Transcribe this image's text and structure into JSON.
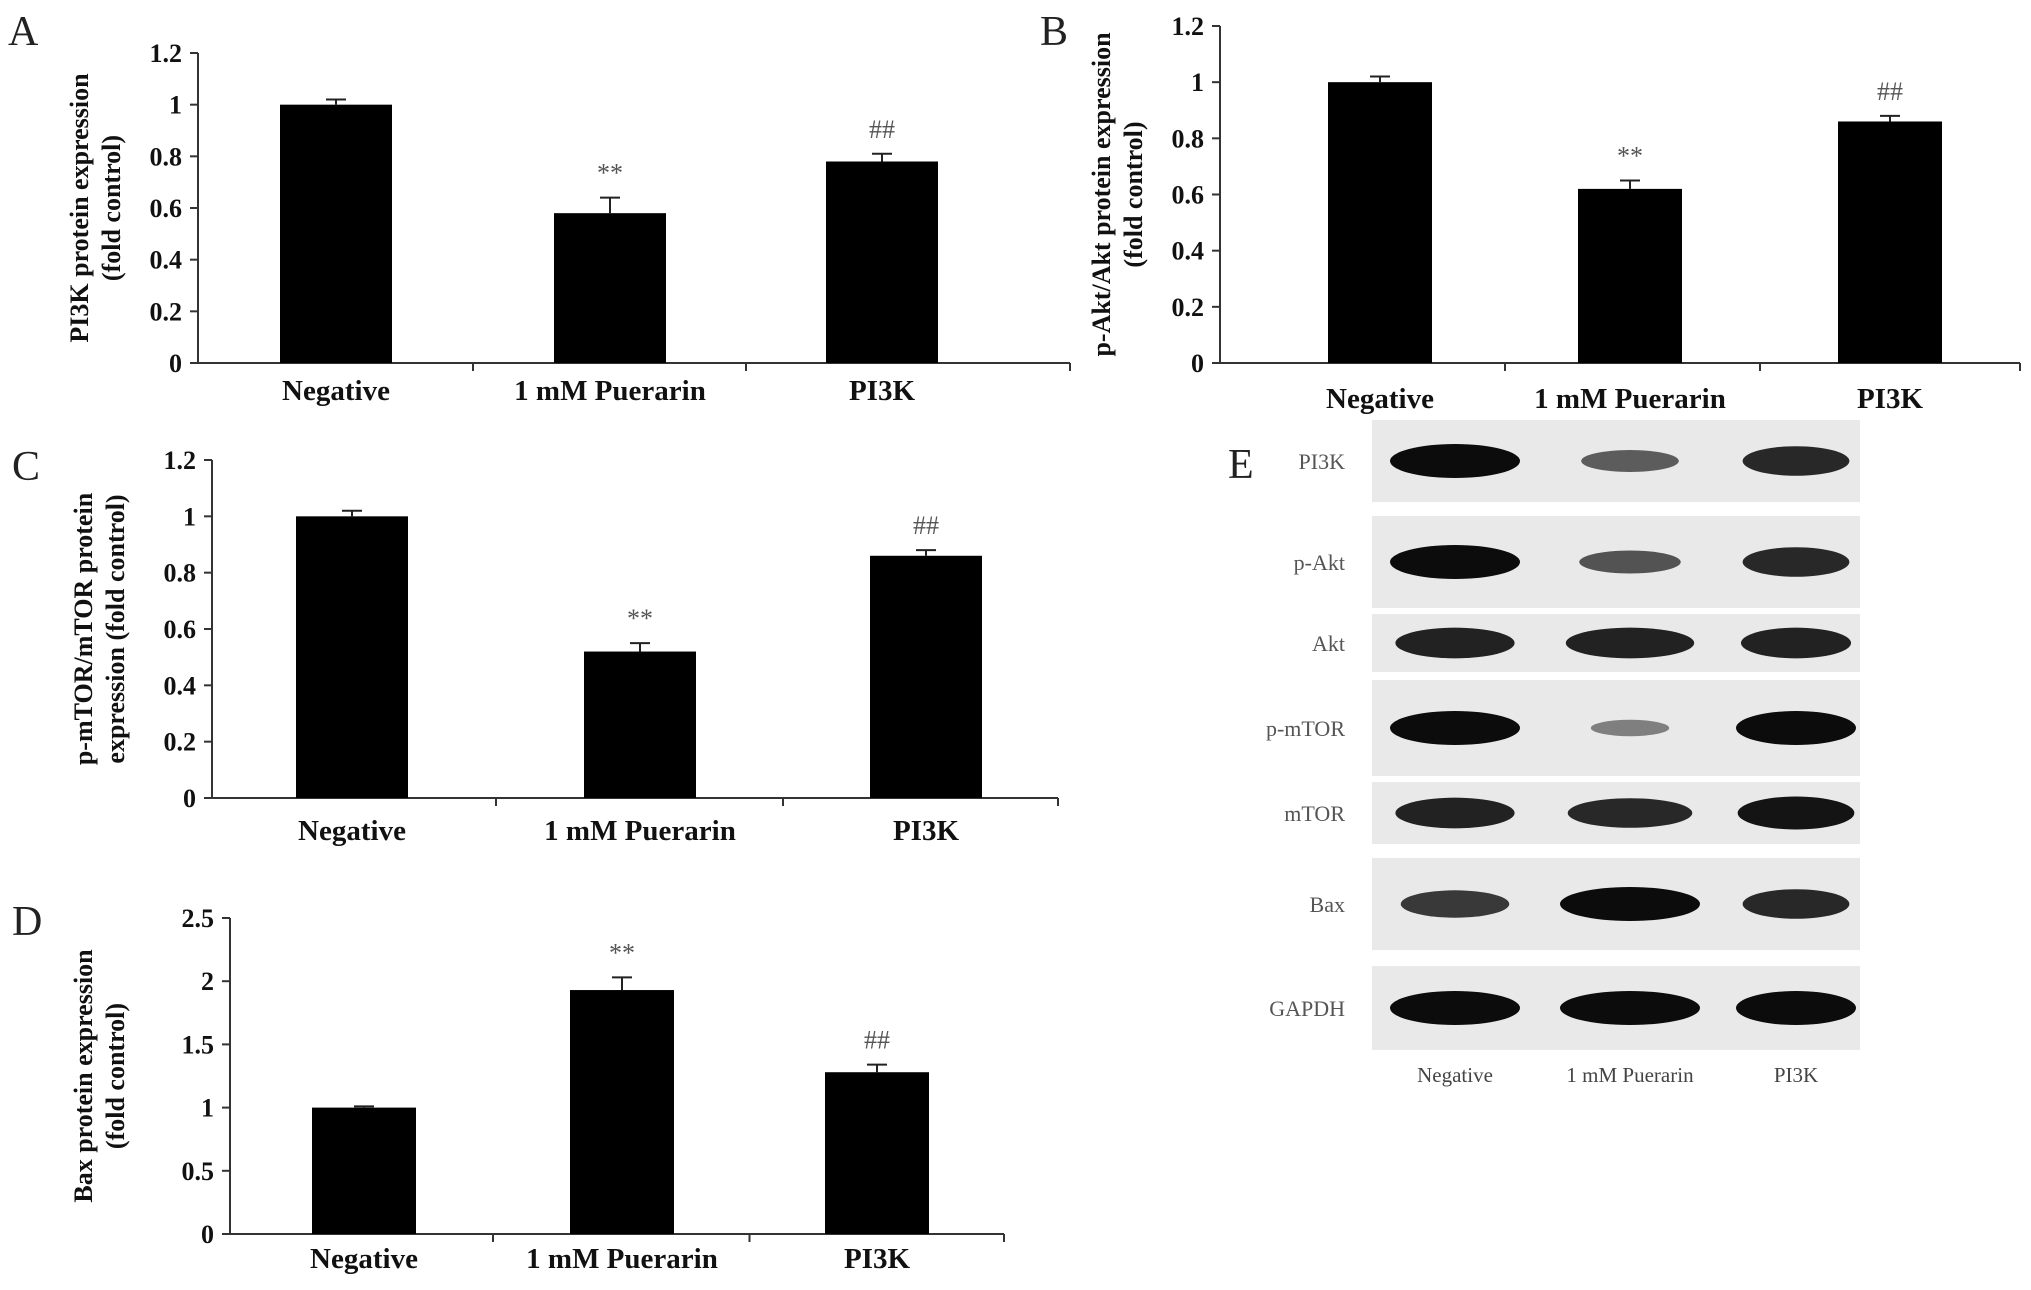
{
  "chart_data": [
    {
      "panel": "A",
      "type": "bar",
      "categories": [
        "Negative",
        "1 mM Puerarin",
        "PI3K"
      ],
      "values": [
        1.0,
        0.58,
        0.78
      ],
      "errors": [
        0.02,
        0.06,
        0.03
      ],
      "annotations": [
        "",
        "**",
        "##"
      ],
      "ylabel_lines": [
        "PI3K protein expression",
        "(fold control)"
      ],
      "ylim": [
        0,
        1.2
      ],
      "yticks": [
        "0",
        "0.2",
        "0.4",
        "0.6",
        "0.8",
        "1",
        "1.2"
      ]
    },
    {
      "panel": "B",
      "type": "bar",
      "categories": [
        "Negative",
        "1 mM Puerarin",
        "PI3K"
      ],
      "values": [
        1.0,
        0.62,
        0.86
      ],
      "errors": [
        0.02,
        0.03,
        0.02
      ],
      "annotations": [
        "",
        "**",
        "##"
      ],
      "ylabel_lines": [
        "p-Akt/Akt protein expression",
        "(fold control)"
      ],
      "ylim": [
        0,
        1.2
      ],
      "yticks": [
        "0",
        "0.2",
        "0.4",
        "0.6",
        "0.8",
        "1",
        "1.2"
      ]
    },
    {
      "panel": "C",
      "type": "bar",
      "categories": [
        "Negative",
        "1 mM Puerarin",
        "PI3K"
      ],
      "values": [
        1.0,
        0.52,
        0.86
      ],
      "errors": [
        0.02,
        0.03,
        0.02
      ],
      "annotations": [
        "",
        "**",
        "##"
      ],
      "ylabel_lines": [
        "p-mTOR/mTOR protein",
        "expression (fold control)"
      ],
      "ylim": [
        0,
        1.2
      ],
      "yticks": [
        "0",
        "0.2",
        "0.4",
        "0.6",
        "0.8",
        "1",
        "1.2"
      ]
    },
    {
      "panel": "D",
      "type": "bar",
      "categories": [
        "Negative",
        "1 mM Puerarin",
        "PI3K"
      ],
      "values": [
        1.0,
        1.93,
        1.28
      ],
      "errors": [
        0.01,
        0.1,
        0.06
      ],
      "annotations": [
        "",
        "**",
        "##"
      ],
      "ylabel_lines": [
        "Bax protein expression",
        "(fold control)"
      ],
      "ylim": [
        0,
        2.5
      ],
      "yticks": [
        "0",
        "0.5",
        "1",
        "1.5",
        "2",
        "2.5"
      ]
    }
  ],
  "blot": {
    "panel": "E",
    "rows": [
      {
        "label": "PI3K",
        "intensities": [
          1.0,
          0.45,
          0.8
        ]
      },
      {
        "label": "p-Akt",
        "intensities": [
          1.0,
          0.5,
          0.8
        ]
      },
      {
        "label": "Akt",
        "intensities": [
          0.85,
          0.85,
          0.85
        ]
      },
      {
        "label": "p-mTOR",
        "intensities": [
          1.0,
          0.2,
          1.0
        ]
      },
      {
        "label": "mTOR",
        "intensities": [
          0.85,
          0.8,
          0.95
        ]
      },
      {
        "label": "Bax",
        "intensities": [
          0.7,
          1.0,
          0.8
        ]
      },
      {
        "label": "GAPDH",
        "intensities": [
          1.0,
          1.0,
          1.0
        ]
      }
    ],
    "lanes": [
      "Negative",
      "1 mM Puerarin",
      "PI3K"
    ]
  }
}
